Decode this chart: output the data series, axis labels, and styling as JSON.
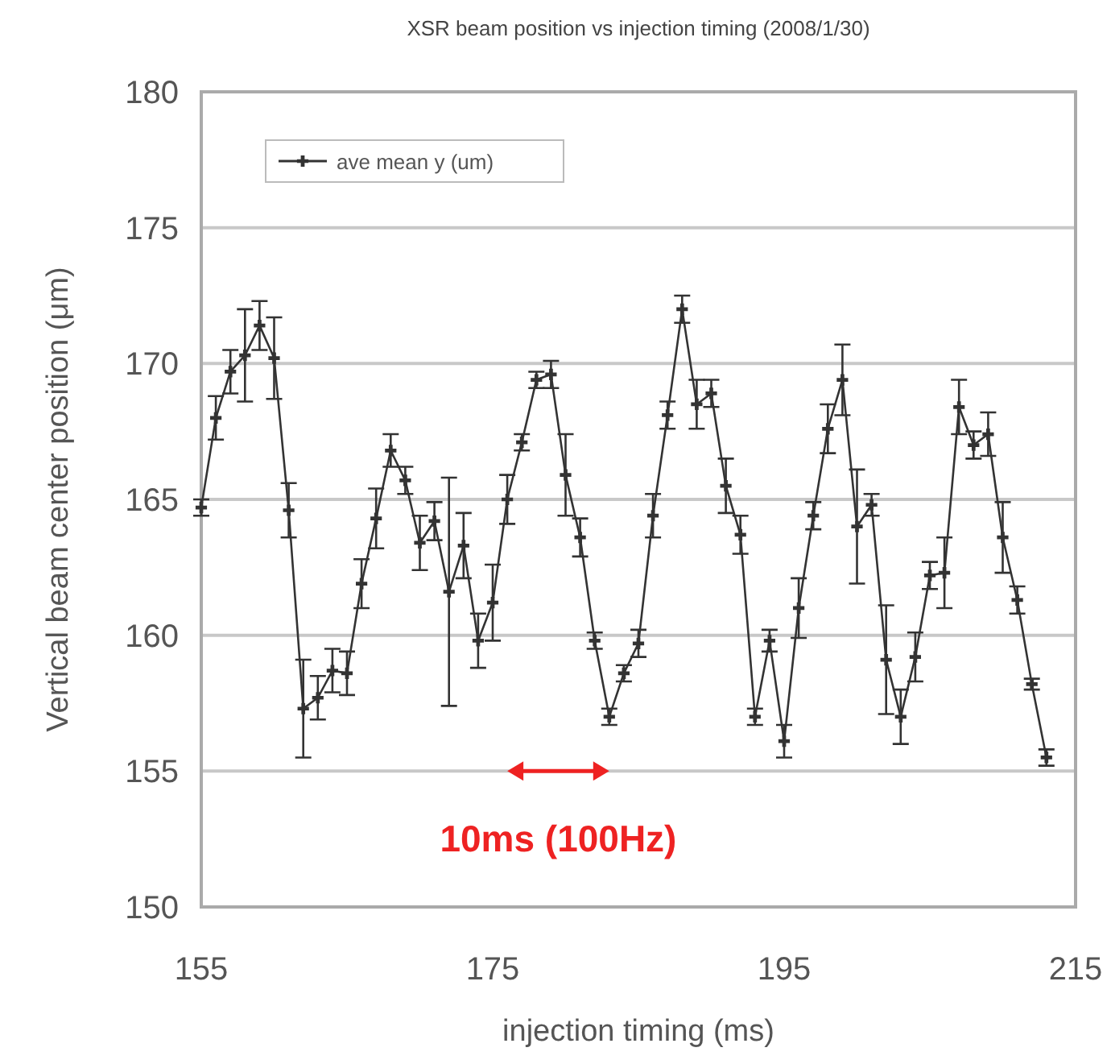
{
  "chart_data": {
    "type": "line",
    "title": "XSR beam position vs injection timing (2008/1/30)",
    "xlabel": "injection timing (ms)",
    "ylabel": "Vertical beam center position (μm)",
    "annotations": [
      "10ms (100Hz)"
    ],
    "x": [
      155,
      156,
      157,
      158,
      159,
      160,
      161,
      162,
      163,
      164,
      165,
      166,
      167,
      168,
      169,
      170,
      171,
      172,
      173,
      174,
      175,
      176,
      177,
      178,
      179,
      180,
      181,
      182,
      183,
      184,
      185,
      186,
      187,
      188,
      189,
      190,
      191,
      192,
      193,
      194,
      195,
      196,
      197,
      198,
      199,
      200,
      201,
      202,
      203,
      204,
      205,
      206,
      207,
      208,
      209,
      210,
      211,
      212,
      213
    ],
    "series": [
      {
        "name": "ave mean y (um)",
        "color": "#333333",
        "values": [
          164.7,
          168.0,
          169.7,
          170.3,
          171.4,
          170.2,
          164.6,
          157.3,
          157.7,
          158.7,
          158.6,
          161.9,
          164.3,
          166.8,
          165.7,
          163.4,
          164.2,
          161.6,
          163.3,
          159.8,
          161.2,
          165.0,
          167.1,
          169.4,
          169.6,
          165.9,
          163.6,
          159.8,
          157.0,
          158.6,
          159.7,
          164.4,
          168.1,
          172.0,
          168.5,
          168.9,
          165.5,
          163.7,
          157.0,
          159.8,
          156.1,
          161.0,
          164.4,
          167.6,
          169.4,
          164.0,
          164.8,
          159.1,
          157.0,
          159.2,
          162.2,
          162.3,
          168.4,
          167.0,
          167.4,
          163.6,
          161.3,
          158.2,
          155.5
        ],
        "errors": [
          0.3,
          0.8,
          0.8,
          1.7,
          0.9,
          1.5,
          1.0,
          1.8,
          0.8,
          0.8,
          0.8,
          0.9,
          1.1,
          0.6,
          0.5,
          1.0,
          0.7,
          4.2,
          1.2,
          1.0,
          1.4,
          0.9,
          0.3,
          0.3,
          0.5,
          1.5,
          0.7,
          0.3,
          0.3,
          0.3,
          0.5,
          0.8,
          0.5,
          0.5,
          0.9,
          0.5,
          1.0,
          0.7,
          0.3,
          0.4,
          0.6,
          1.1,
          0.5,
          0.9,
          1.3,
          2.1,
          0.4,
          2.0,
          1.0,
          0.9,
          0.5,
          1.3,
          1.0,
          0.5,
          0.8,
          1.3,
          0.5,
          0.2,
          0.3
        ]
      }
    ],
    "xlim": [
      155,
      215
    ],
    "xticks": [
      155,
      175,
      195,
      215
    ],
    "ylim": [
      150,
      180
    ],
    "yticks": [
      150,
      155,
      160,
      165,
      170,
      175,
      180
    ],
    "grid": "y",
    "legend": "top left",
    "marker": "cross",
    "line_style": "solid"
  }
}
